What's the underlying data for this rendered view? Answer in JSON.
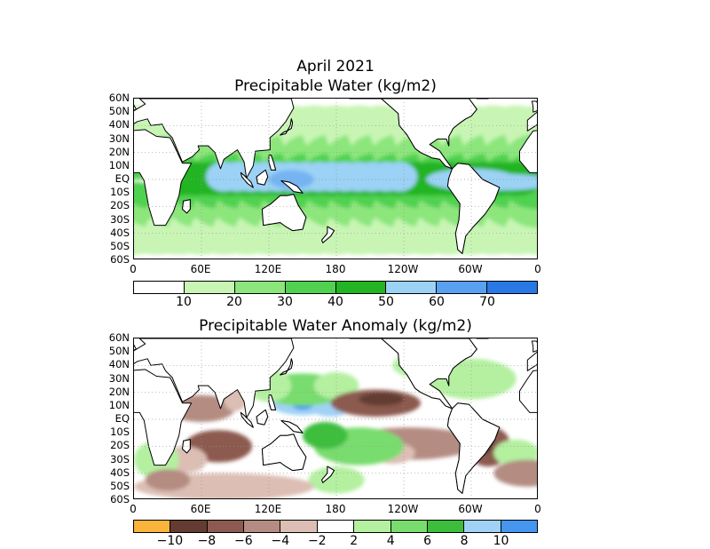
{
  "titles": {
    "month": "April 2021",
    "panel1": "Precipitable Water (kg/m2)",
    "panel2": "Precipitable Water Anomaly (kg/m2)"
  },
  "latitude_labels": [
    "60N",
    "50N",
    "40N",
    "30N",
    "20N",
    "10N",
    "EQ",
    "10S",
    "20S",
    "30S",
    "40S",
    "50S",
    "60S"
  ],
  "longitude_labels": [
    "0",
    "60E",
    "120E",
    "180",
    "120W",
    "60W",
    "0"
  ],
  "colors": {
    "land_outline": "#000000",
    "grid": "#999999"
  },
  "chart_data": [
    {
      "type": "heatmap",
      "title": "Precipitable Water (kg/m2)",
      "colorbar": {
        "labels": [
          "10",
          "20",
          "30",
          "40",
          "50",
          "60",
          "70"
        ],
        "colors": [
          "#ffffff",
          "#c8f5b4",
          "#8ce67c",
          "#50d250",
          "#22b422",
          "#9bd2f5",
          "#5aa0f0",
          "#2878e6"
        ]
      }
    },
    {
      "type": "heatmap",
      "title": "Precipitable Water Anomaly (kg/m2)",
      "colorbar": {
        "labels": [
          "−10",
          "−8",
          "−6",
          "−4",
          "−2",
          "2",
          "4",
          "6",
          "8",
          "10"
        ],
        "colors": [
          "#fab43c",
          "#643c32",
          "#8c5a50",
          "#b48c82",
          "#dcbeb4",
          "#ffffff",
          "#b4f0a0",
          "#78dc6e",
          "#3cbe3c",
          "#a0d2f5",
          "#4696f0"
        ]
      }
    }
  ]
}
